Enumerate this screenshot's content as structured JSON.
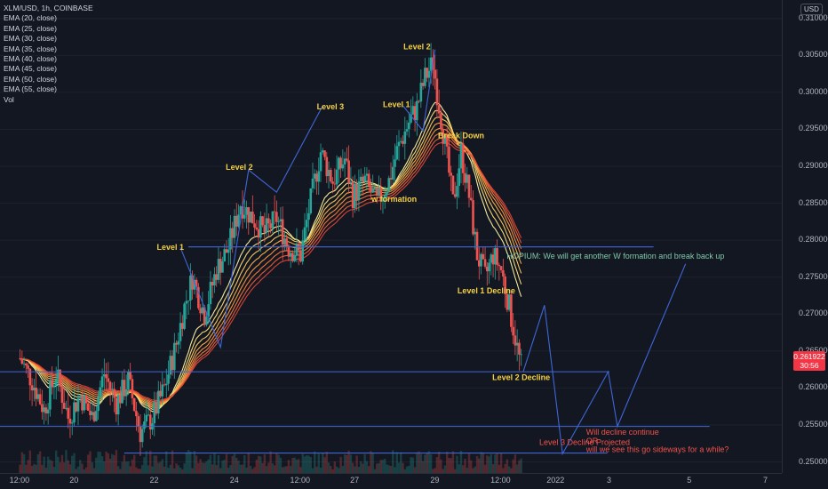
{
  "header": {
    "symbol": "XLM/USD, 1h, COINBASE",
    "indicators": [
      "EMA (20, close)",
      "EMA (25, close)",
      "EMA (30, close)",
      "EMA (35, close)",
      "EMA (40, close)",
      "EMA (45, close)",
      "EMA (50, close)",
      "EMA (55, close)",
      "Vol"
    ],
    "currency": "USD"
  },
  "price_box": {
    "price": "0.261922",
    "countdown": "30:56"
  },
  "colors": {
    "background": "#131722",
    "up": "#26a69a",
    "down": "#ef5350",
    "lines": "#3f66d8",
    "level_text": "#f5d142",
    "hopium_text": "#7fc8a9",
    "projection_text": "#f0524b"
  },
  "chart_data": {
    "type": "candlestick",
    "title": "XLM/USD, 1h, COINBASE",
    "y_ticks": [
      0.31,
      0.305,
      0.3,
      0.295,
      0.29,
      0.285,
      0.28,
      0.275,
      0.27,
      0.265,
      0.26,
      0.255,
      0.25
    ],
    "y_tick_labels": [
      "0.310000",
      "0.305000",
      "0.300000",
      "0.295000",
      "0.290000",
      "0.285000",
      "0.280000",
      "0.275000",
      "0.270000",
      "0.265000",
      "0.260000",
      "0.255000",
      "0.250000"
    ],
    "ylim": [
      0.2485,
      0.3125
    ],
    "x_tick_labels": [
      "12:00",
      "20",
      "22",
      "24",
      "12:00",
      "27",
      "29",
      "12:00",
      "2022",
      "3",
      "5",
      "7"
    ],
    "price_path": [
      [
        18.0,
        0.264
      ],
      [
        18.3,
        0.261
      ],
      [
        18.6,
        0.257
      ],
      [
        18.9,
        0.262
      ],
      [
        19.2,
        0.256
      ],
      [
        19.5,
        0.259
      ],
      [
        19.8,
        0.256
      ],
      [
        20.1,
        0.262
      ],
      [
        20.4,
        0.258
      ],
      [
        20.7,
        0.261
      ],
      [
        21.0,
        0.254
      ],
      [
        21.3,
        0.256
      ],
      [
        21.6,
        0.26
      ],
      [
        21.9,
        0.266
      ],
      [
        22.1,
        0.271
      ],
      [
        22.3,
        0.275
      ],
      [
        22.6,
        0.27
      ],
      [
        22.9,
        0.276
      ],
      [
        23.2,
        0.279
      ],
      [
        23.5,
        0.285
      ],
      [
        23.8,
        0.283
      ],
      [
        24.1,
        0.281
      ],
      [
        24.4,
        0.283
      ],
      [
        24.7,
        0.279
      ],
      [
        25.0,
        0.278
      ],
      [
        25.2,
        0.284
      ],
      [
        25.5,
        0.292
      ],
      [
        25.8,
        0.288
      ],
      [
        26.1,
        0.291
      ],
      [
        26.3,
        0.286
      ],
      [
        26.6,
        0.288
      ],
      [
        26.9,
        0.285
      ],
      [
        27.2,
        0.288
      ],
      [
        27.4,
        0.292
      ],
      [
        27.7,
        0.296
      ],
      [
        27.9,
        0.298
      ],
      [
        28.1,
        0.302
      ],
      [
        28.3,
        0.304
      ],
      [
        28.4,
        0.3
      ],
      [
        28.6,
        0.293
      ],
      [
        28.8,
        0.285
      ],
      [
        29.0,
        0.292
      ],
      [
        29.2,
        0.286
      ],
      [
        29.4,
        0.278
      ],
      [
        29.6,
        0.275
      ],
      [
        29.8,
        0.278
      ],
      [
        30.0,
        0.276
      ],
      [
        30.2,
        0.271
      ],
      [
        30.45,
        0.264
      ],
      [
        30.55,
        0.262
      ]
    ],
    "ema_periods": [
      20,
      25,
      30,
      35,
      40,
      45,
      50,
      55
    ],
    "annotations": [
      {
        "text": "Level 1",
        "x": 21.75,
        "y": 0.2787,
        "color": "level"
      },
      {
        "text": "Level 2",
        "x": 23.47,
        "y": 0.2895,
        "color": "level"
      },
      {
        "text": "Level 3",
        "x": 25.74,
        "y": 0.2977,
        "color": "level"
      },
      {
        "text": "Level 2",
        "x": 27.9,
        "y": 0.3058,
        "color": "level"
      },
      {
        "text": "Level 1",
        "x": 27.39,
        "y": 0.298,
        "color": "level"
      },
      {
        "text": "Break Down",
        "x": 29.0,
        "y": 0.2938,
        "color": "level"
      },
      {
        "text": "w formation",
        "x": 27.33,
        "y": 0.2852,
        "color": "level"
      },
      {
        "text": "Level 1 Decline",
        "x": 29.63,
        "y": 0.2728,
        "color": "level"
      },
      {
        "text": "Level 2 Decline",
        "x": 30.5,
        "y": 0.2611,
        "color": "level"
      },
      {
        "text": "HOPIUM:  We will get another W formation and break back up",
        "x": 30.14,
        "y": 0.2775,
        "color": "hopium"
      },
      {
        "text": "Level 3 Decline Projected",
        "x": 30.95,
        "y": 0.2523,
        "color": "projection"
      },
      {
        "text": "Will decline continue",
        "x": 32.12,
        "y": 0.2537,
        "color": "projection"
      },
      {
        "text": "OR",
        "x": 32.12,
        "y": 0.2525,
        "color": "projection"
      },
      {
        "text": "will we see this go sideways for a while?",
        "x": 32.12,
        "y": 0.2513,
        "color": "projection"
      }
    ],
    "horizontal_levels": [
      {
        "y": 0.2791,
        "x1": 22.2,
        "x2": 33.8
      },
      {
        "y": 0.2622,
        "x1": 17.5,
        "x2": 32.7
      },
      {
        "y": 0.2548,
        "x1": 17.5,
        "x2": 35.2
      },
      {
        "y": 0.2512,
        "x1": 20.6,
        "x2": 32.65
      }
    ],
    "projection_path": [
      [
        30.55,
        0.2622
      ],
      [
        31.08,
        0.2712
      ],
      [
        31.53,
        0.2511
      ],
      [
        32.67,
        0.2622
      ],
      [
        32.9,
        0.2548
      ],
      [
        34.6,
        0.2768
      ]
    ],
    "pattern_lines": [
      {
        "points": [
          [
            22.0,
            0.279
          ],
          [
            23.0,
            0.2655
          ],
          [
            23.7,
            0.2895
          ],
          [
            24.4,
            0.2865
          ],
          [
            25.55,
            0.2982
          ]
        ]
      },
      {
        "points": [
          [
            27.55,
            0.2982
          ],
          [
            28.05,
            0.2948
          ],
          [
            28.35,
            0.3058
          ]
        ]
      }
    ]
  }
}
